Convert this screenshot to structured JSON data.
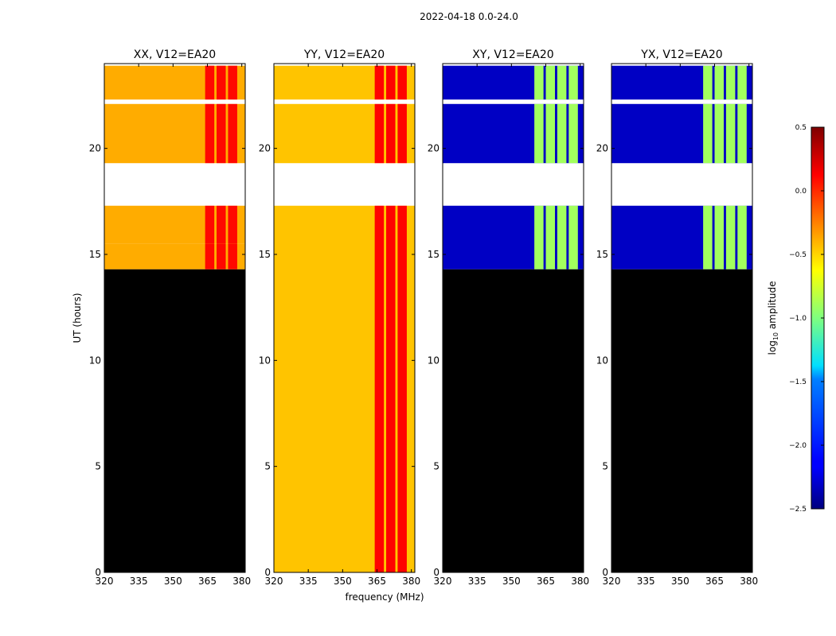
{
  "figure": {
    "suptitle": "2022-04-18 0.0-24.0",
    "ylabel": "UT (hours)",
    "xlabel": "frequency (MHz)"
  },
  "chart_data": {
    "type": "heatmap",
    "title": "2022-04-18 0.0-24.0",
    "xlabel": "frequency (MHz)",
    "ylabel": "UT (hours)",
    "xlim": [
      320,
      381.5
    ],
    "ylim": [
      0,
      24
    ],
    "xticks": [
      320,
      335,
      350,
      365,
      380
    ],
    "yticks": [
      0,
      5,
      10,
      15,
      20
    ],
    "panels": [
      {
        "title": "XX, V12=EA20",
        "key": "XX",
        "base_log_amplitude": -0.38,
        "band_log_amplitude": 0.1,
        "band_freq_ranges_mhz": [
          [
            364,
            368
          ],
          [
            369,
            373
          ],
          [
            374,
            378
          ]
        ],
        "data_time_ranges_h": [
          [
            14.3,
            15.5
          ],
          [
            15.5,
            17.3
          ],
          [
            19.3,
            22.1
          ],
          [
            22.3,
            23.9
          ]
        ],
        "blank_time_ranges_h": [
          [
            17.3,
            19.3
          ],
          [
            22.1,
            22.3
          ]
        ],
        "flagged_time_ranges_h": [
          [
            0,
            14.3
          ]
        ]
      },
      {
        "title": "YY, V12=EA20",
        "key": "YY",
        "base_log_amplitude": -0.45,
        "band_log_amplitude": 0.12,
        "band_freq_ranges_mhz": [
          [
            364,
            368
          ],
          [
            369,
            373
          ],
          [
            374,
            378
          ]
        ],
        "data_time_ranges_h": [
          [
            0,
            17.3
          ],
          [
            19.3,
            22.1
          ],
          [
            22.3,
            23.9
          ]
        ],
        "blank_time_ranges_h": [
          [
            17.3,
            19.3
          ],
          [
            22.1,
            22.3
          ]
        ],
        "flagged_time_ranges_h": []
      },
      {
        "title": "XY, V12=EA20",
        "key": "XY",
        "base_log_amplitude": -2.3,
        "band_log_amplitude": -0.9,
        "band_freq_ranges_mhz": [
          [
            360,
            364
          ],
          [
            365,
            369
          ],
          [
            370,
            374
          ],
          [
            375,
            379
          ]
        ],
        "data_time_ranges_h": [
          [
            14.3,
            17.3
          ],
          [
            19.3,
            22.1
          ],
          [
            22.3,
            23.9
          ]
        ],
        "blank_time_ranges_h": [
          [
            17.3,
            19.3
          ],
          [
            22.1,
            22.3
          ]
        ],
        "flagged_time_ranges_h": [
          [
            0,
            14.3
          ]
        ]
      },
      {
        "title": "YX, V12=EA20",
        "key": "YX",
        "base_log_amplitude": -2.3,
        "band_log_amplitude": -0.9,
        "band_freq_ranges_mhz": [
          [
            360,
            364
          ],
          [
            365,
            369
          ],
          [
            370,
            374
          ],
          [
            375,
            379
          ]
        ],
        "data_time_ranges_h": [
          [
            14.3,
            17.3
          ],
          [
            19.3,
            22.1
          ],
          [
            22.3,
            23.9
          ]
        ],
        "blank_time_ranges_h": [
          [
            17.3,
            19.3
          ],
          [
            22.1,
            22.3
          ]
        ],
        "flagged_time_ranges_h": [
          [
            0,
            14.3
          ]
        ]
      }
    ],
    "colorbar": {
      "label": "log10 amplitude",
      "label_base": "log",
      "label_sub": "10",
      "label_rest": " amplitude",
      "range": [
        -2.5,
        0.5
      ],
      "colormap": "jet",
      "ticks": [
        0.5,
        0.0,
        -0.5,
        -1.0,
        -1.5,
        -2.0,
        -2.5
      ],
      "tick_labels": [
        "0.5",
        "0.0",
        "−0.5",
        "−1.0",
        "−1.5",
        "−2.0",
        "−2.5"
      ]
    }
  }
}
